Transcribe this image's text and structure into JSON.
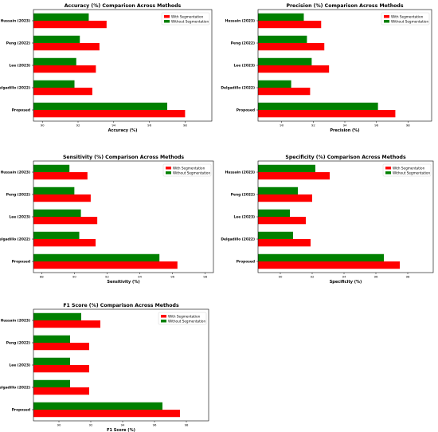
{
  "colors": {
    "with": "#ff0000",
    "without": "#008000",
    "axis": "#000000"
  },
  "chart_data": [
    {
      "type": "bar",
      "title": "Accuracy (%) Comparison Across Methods",
      "xlabel": "Accuracy (%)",
      "categories": [
        "Hussain (2023)",
        "Peng (2022)",
        "Lee (2023)",
        "Delgadillo (2022)",
        "Proposed"
      ],
      "xticks": [
        "90",
        "92",
        "94",
        "96",
        "98"
      ],
      "xlim": [
        89.5,
        99.5
      ],
      "orientation": "horizontal",
      "legend": "top-right",
      "series": [
        {
          "name": "With Segmentation",
          "values": [
            93.6,
            93.2,
            93.0,
            92.8,
            98.0
          ]
        },
        {
          "name": "Without Segmentation",
          "values": [
            92.6,
            92.1,
            91.9,
            91.8,
            97.0
          ]
        }
      ]
    },
    {
      "type": "bar",
      "title": "Precision (%) Comparison Across Methods",
      "xlabel": "Precision (%)",
      "categories": [
        "Hussain (2023)",
        "Peng (2022)",
        "Lee (2023)",
        "Delgadillo (2022)",
        "Proposed"
      ],
      "xticks": [
        "90",
        "92",
        "94",
        "96",
        "98"
      ],
      "xlim": [
        88.5,
        99.5
      ],
      "orientation": "horizontal",
      "legend": "top-right",
      "series": [
        {
          "name": "With Segmentation",
          "values": [
            92.5,
            92.7,
            93.0,
            91.8,
            97.2
          ]
        },
        {
          "name": "Without Segmentation",
          "values": [
            91.4,
            91.6,
            91.9,
            90.6,
            96.1
          ]
        }
      ]
    },
    {
      "type": "bar",
      "title": "Sensitivity (%) Comparison Across Methods",
      "xlabel": "Sensitivity (%)",
      "categories": [
        "Hussain (2023)",
        "Peng (2022)",
        "Lee (2023)",
        "Delgadillo (2022)",
        "Proposed"
      ],
      "xticks": [
        "88",
        "90",
        "92",
        "94",
        "96",
        "98"
      ],
      "xlim": [
        87.5,
        98.5
      ],
      "orientation": "horizontal",
      "legend": "top-right",
      "series": [
        {
          "name": "With Segmentation",
          "values": [
            90.8,
            91.0,
            91.4,
            91.3,
            96.3
          ]
        },
        {
          "name": "Without Segmentation",
          "values": [
            89.7,
            90.0,
            90.4,
            90.3,
            95.2
          ]
        }
      ]
    },
    {
      "type": "bar",
      "title": "Specificity (%) Comparison Across Methods",
      "xlabel": "Specificity (%)",
      "categories": [
        "Hussain (2023)",
        "Peng (2022)",
        "Lee (2023)",
        "Delgadillo (2022)",
        "Proposed"
      ],
      "xticks": [
        "90",
        "92",
        "94",
        "96",
        "98"
      ],
      "xlim": [
        88.6,
        99.6
      ],
      "orientation": "horizontal",
      "legend": "top-right",
      "series": [
        {
          "name": "With Segmentation",
          "values": [
            93.1,
            92.0,
            91.6,
            91.9,
            97.5
          ]
        },
        {
          "name": "Without Segmentation",
          "values": [
            92.2,
            91.1,
            90.6,
            90.8,
            96.5
          ]
        }
      ]
    },
    {
      "type": "bar",
      "title": "F1 Score (%) Comparison Across Methods",
      "xlabel": "F1 Score (%)",
      "categories": [
        "Hussain (2023)",
        "Peng (2022)",
        "Lee (2023)",
        "Delgadillo (2022)",
        "Proposed"
      ],
      "xticks": [
        "90",
        "92",
        "94",
        "96",
        "98"
      ],
      "xlim": [
        88.4,
        99.4
      ],
      "orientation": "horizontal",
      "legend": "top-right",
      "series": [
        {
          "name": "With Segmentation",
          "values": [
            92.6,
            91.9,
            91.9,
            91.9,
            97.6
          ]
        },
        {
          "name": "Without Segmentation",
          "values": [
            91.4,
            90.7,
            90.7,
            90.7,
            96.5
          ]
        }
      ]
    }
  ]
}
